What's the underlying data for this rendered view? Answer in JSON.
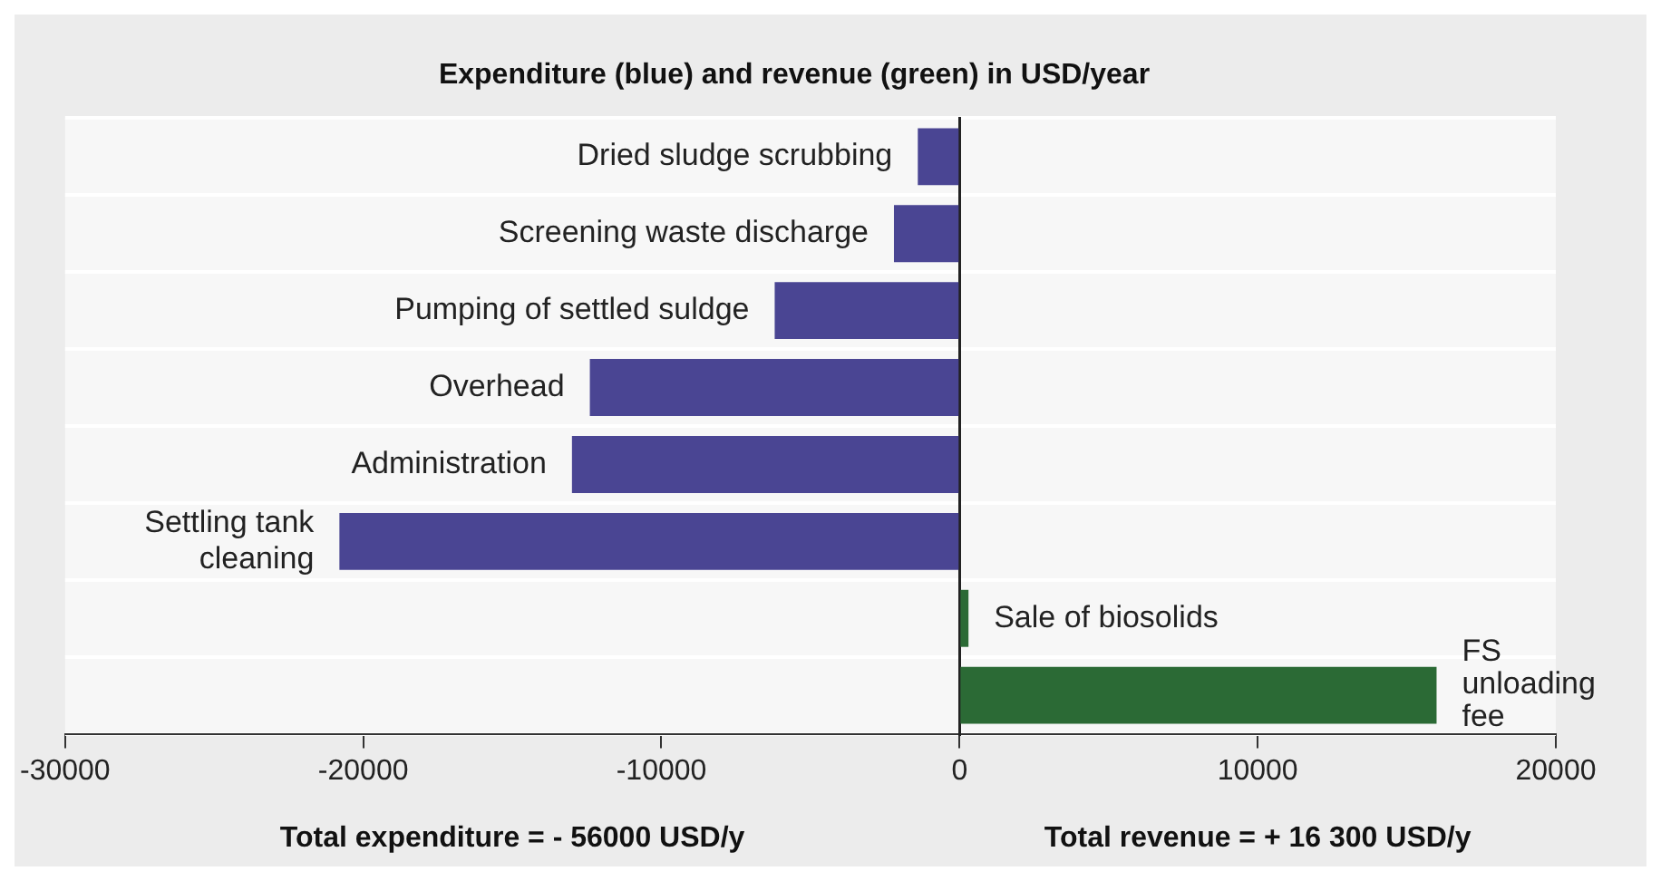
{
  "chart_data": {
    "type": "bar",
    "orientation": "horizontal",
    "title": "Expenditure (blue) and revenue (green) in USD/year",
    "categories": [
      "Dried sludge scrubbing",
      "Screening waste discharge",
      "Pumping of settled suldge",
      "Overhead",
      "Administration",
      "Settling tank cleaning",
      "Sale of biosolids",
      "FS unloading fee"
    ],
    "values": [
      -1400,
      -2200,
      -6200,
      -12400,
      -13000,
      -20800,
      300,
      16000
    ],
    "colors": [
      "#4a4593",
      "#4a4593",
      "#4a4593",
      "#4a4593",
      "#4a4593",
      "#4a4593",
      "#2b6a35",
      "#2b6a35"
    ],
    "xlim": [
      -30000,
      20000
    ],
    "xticks": [
      -30000,
      -20000,
      -10000,
      0,
      10000,
      20000
    ],
    "grid": "y",
    "tick_labels": "x",
    "legend": false,
    "annotations": [
      "Total expenditure = - 56000 USD/y",
      "Total revenue = + 16 300 USD/y"
    ]
  }
}
